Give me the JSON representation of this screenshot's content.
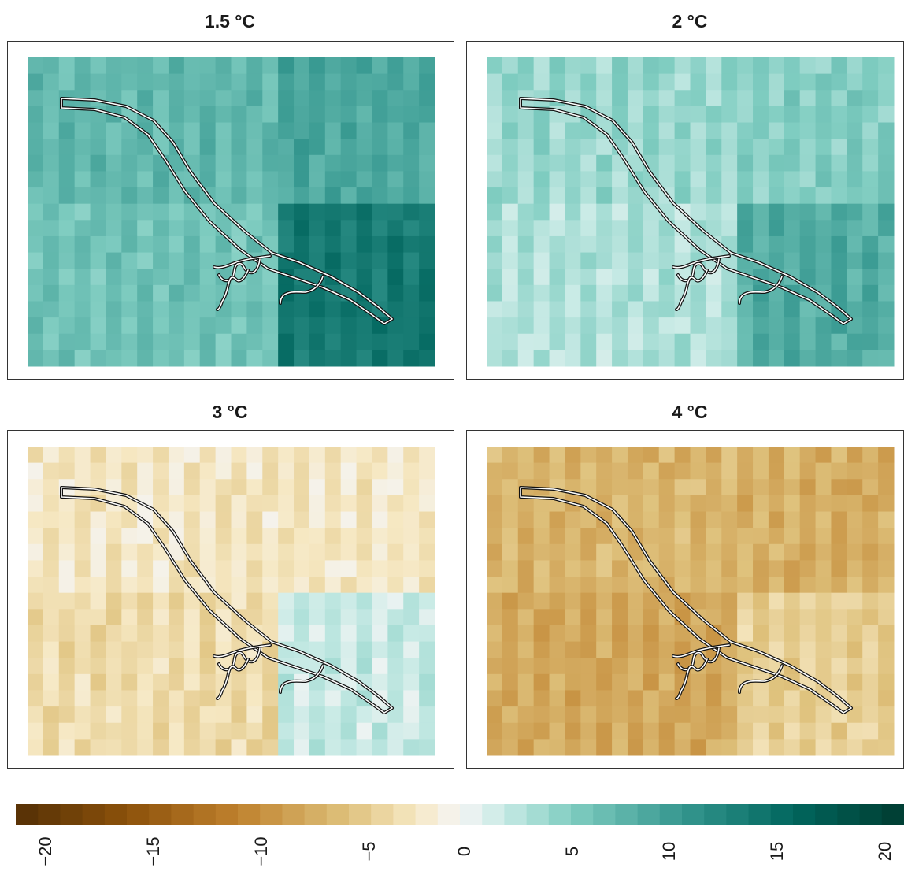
{
  "panels": [
    {
      "title": "1.5 °C",
      "base": 7,
      "region_mod": {
        "river_bank": 3,
        "south_east": 6
      }
    },
    {
      "title": "2 °C",
      "base": 4,
      "region_mod": {
        "river_bank": 2,
        "south_east": 4
      }
    },
    {
      "title": "3 °C",
      "base": -2,
      "region_mod": {
        "river_bank": 0,
        "south_east": 4
      }
    },
    {
      "title": "4 °C",
      "base": -6,
      "region_mod": {
        "river_bank": -1,
        "south_east": 2
      }
    }
  ],
  "legend": {
    "min": -20,
    "max": 20,
    "ticks": [
      "−20",
      "−15",
      "−10",
      "−5",
      "0",
      "5",
      "10",
      "15",
      "20"
    ],
    "colors_negative": "#543005",
    "colors_mid": "#f5f5f5",
    "colors_positive": "#003c30"
  }
}
